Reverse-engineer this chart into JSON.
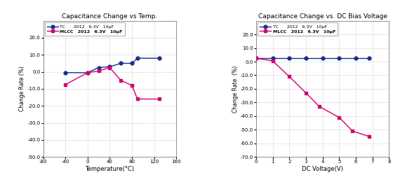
{
  "left": {
    "title": "Capacitance Change vs Temp.",
    "xlabel": "Temperature(°C)",
    "ylabel": "Change Rate (%)",
    "xlim": [
      -80,
      160
    ],
    "ylim": [
      -50,
      30
    ],
    "xticks": [
      -80,
      -40,
      0,
      40,
      80,
      120,
      160
    ],
    "yticks": [
      -50.0,
      -40.0,
      -30.0,
      -20.0,
      -10.0,
      0.0,
      10.0,
      20.0
    ],
    "tc_x": [
      -40,
      0,
      20,
      40,
      60,
      80,
      90,
      130
    ],
    "tc_y": [
      -0.5,
      -0.5,
      2.5,
      3.0,
      5.0,
      5.0,
      8.0,
      8.0
    ],
    "mlcc_x": [
      -40,
      0,
      20,
      40,
      60,
      80,
      90,
      130
    ],
    "mlcc_y": [
      -7.5,
      -0.5,
      0.5,
      2.5,
      -5.0,
      -8.0,
      -16.0,
      -16.0
    ],
    "legend_tc": "TC      2012   6.3V   10μF",
    "legend_mlcc": "MLCC   2012   6.3V   10μF",
    "tc_color": "#1a2f8a",
    "mlcc_color": "#d4006e"
  },
  "right": {
    "title": "Capacitance Change vs. DC Bias Voltage",
    "xlabel": "DC Voltage(V)",
    "ylabel": "Change Rate  (%)",
    "xlim": [
      0,
      8
    ],
    "ylim": [
      -70,
      30
    ],
    "xticks": [
      0,
      1,
      2,
      3,
      4,
      5,
      6,
      7,
      8
    ],
    "yticks": [
      -70.0,
      -60.0,
      -50.0,
      -40.0,
      -30.0,
      -20.0,
      -10.0,
      0.0,
      10.0,
      20.0
    ],
    "tc_x": [
      0,
      1,
      2,
      3,
      4,
      5,
      6,
      6.8
    ],
    "tc_y": [
      2.5,
      2.5,
      2.5,
      2.5,
      2.5,
      2.5,
      2.5,
      2.5
    ],
    "mlcc_x": [
      0,
      1,
      2,
      3,
      3.8,
      5.0,
      5.8,
      6.8
    ],
    "mlcc_y": [
      2.5,
      0.5,
      -11.0,
      -23.0,
      -33.0,
      -41.0,
      -51.0,
      -55.0
    ],
    "legend_tc": "TC      2012   6.3V   10μF",
    "legend_mlcc": "MLCC   2012   6.3V   10μF",
    "tc_color": "#1a2f8a",
    "mlcc_color": "#d4006e"
  }
}
